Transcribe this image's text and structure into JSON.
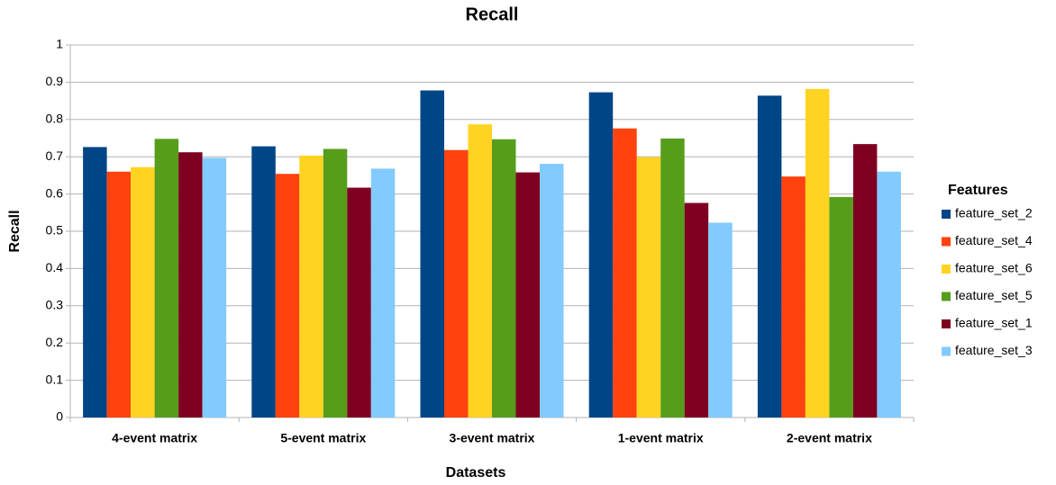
{
  "chart_data": {
    "type": "bar",
    "title": "Recall",
    "x_label": "Datasets",
    "y_label": "Recall",
    "legend_title": "Features",
    "legend": "right",
    "grid": true,
    "categories": [
      "4-event matrix",
      "5-event matrix",
      "3-event matrix",
      "1-event matrix",
      "2-event matrix"
    ],
    "series": [
      {
        "name": "feature_set_2",
        "color": "#004586",
        "values": [
          0.726,
          0.728,
          0.878,
          0.873,
          0.864
        ]
      },
      {
        "name": "feature_set_4",
        "color": "#ff420e",
        "values": [
          0.66,
          0.654,
          0.718,
          0.776,
          0.647
        ]
      },
      {
        "name": "feature_set_6",
        "color": "#ffd320",
        "values": [
          0.672,
          0.703,
          0.787,
          0.699,
          0.882
        ]
      },
      {
        "name": "feature_set_5",
        "color": "#579d1c",
        "values": [
          0.748,
          0.721,
          0.747,
          0.749,
          0.592
        ]
      },
      {
        "name": "feature_set_1",
        "color": "#7e0021",
        "values": [
          0.712,
          0.617,
          0.658,
          0.576,
          0.734
        ]
      },
      {
        "name": "feature_set_3",
        "color": "#83caff",
        "values": [
          0.697,
          0.668,
          0.681,
          0.523,
          0.66
        ]
      }
    ],
    "ylim": [
      0,
      1
    ],
    "yticks": [
      0,
      0.1,
      0.2,
      0.3,
      0.4,
      0.5,
      0.6,
      0.7,
      0.8,
      0.9,
      1
    ]
  }
}
